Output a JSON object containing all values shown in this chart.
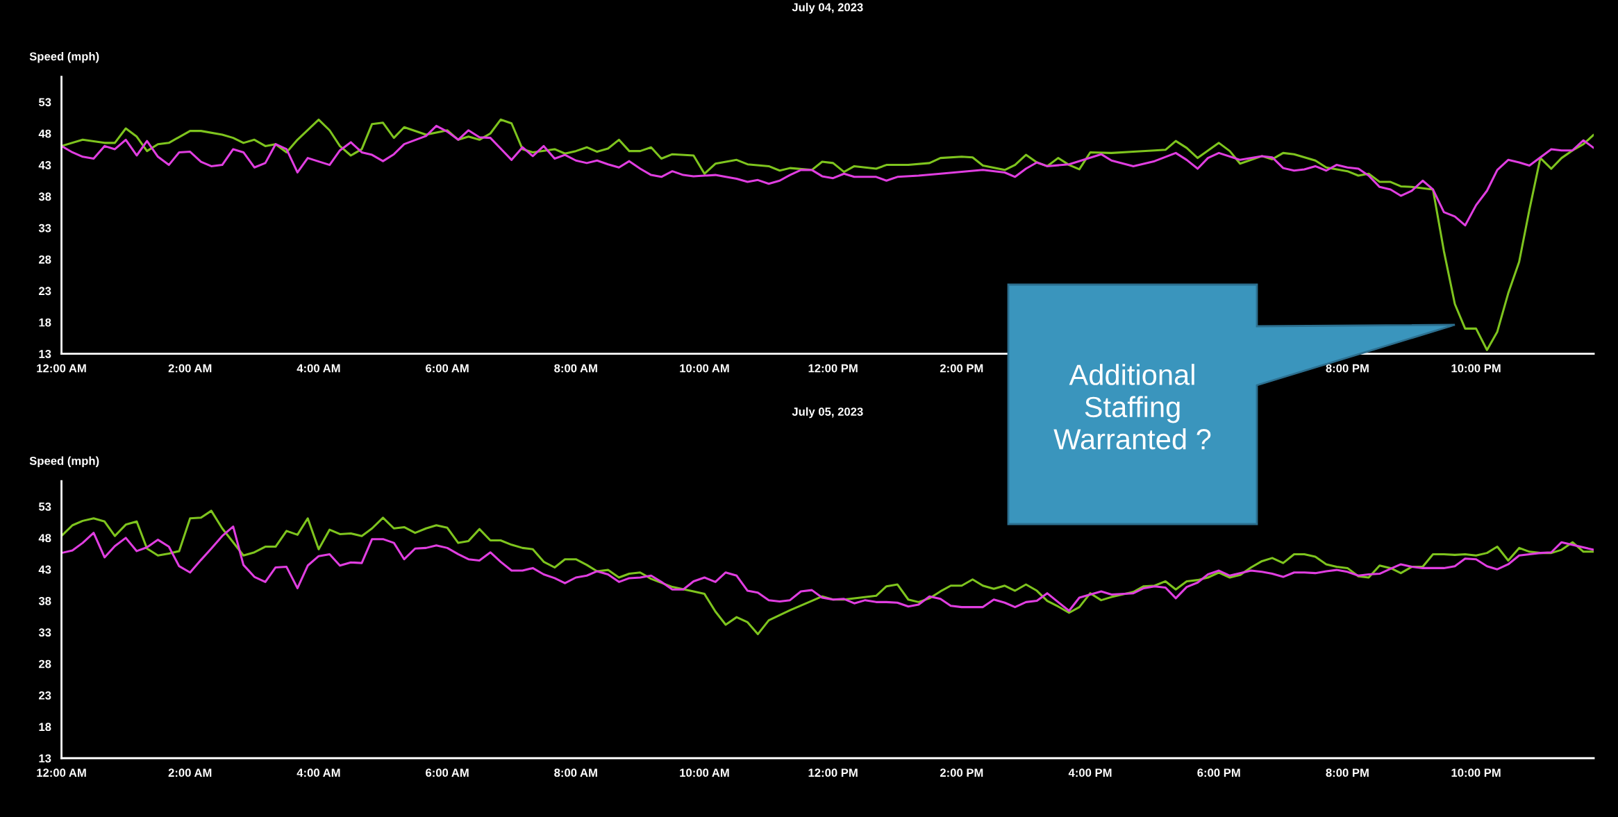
{
  "chart_data": [
    {
      "type": "line",
      "title": "July 04, 2023",
      "ylabel": "Speed (mph)",
      "xlim": [
        0,
        23.83
      ],
      "ylim": [
        13,
        57
      ],
      "xticks": [
        {
          "value": 0,
          "label": "12:00 AM"
        },
        {
          "value": 2,
          "label": "2:00 AM"
        },
        {
          "value": 4,
          "label": "4:00 AM"
        },
        {
          "value": 6,
          "label": "6:00 AM"
        },
        {
          "value": 8,
          "label": "8:00 AM"
        },
        {
          "value": 10,
          "label": "10:00 AM"
        },
        {
          "value": 12,
          "label": "12:00 PM"
        },
        {
          "value": 14,
          "label": "2:00 PM"
        },
        {
          "value": 20,
          "label": "8:00 PM"
        },
        {
          "value": 22,
          "label": "10:00 PM"
        }
      ],
      "yticks": [
        13,
        18,
        23,
        28,
        33,
        38,
        43,
        48,
        53
      ],
      "grid": false,
      "legend": false,
      "marker": "none",
      "line_style": "solid",
      "annotations": [
        "Additional\nStaffing\nWarranted ?"
      ],
      "series": [
        {
          "color": "#7ec41e",
          "x": [
            0,
            0.33,
            0.67,
            0.83,
            1,
            1.17,
            1.33,
            1.5,
            1.67,
            2,
            2.17,
            2.5,
            2.67,
            2.83,
            3,
            3.17,
            3.33,
            3.5,
            3.67,
            4,
            4.17,
            4.33,
            4.5,
            4.67,
            4.83,
            5,
            5.17,
            5.33,
            5.67,
            6,
            6.17,
            6.33,
            6.5,
            6.67,
            6.83,
            7,
            7.17,
            7.33,
            7.67,
            7.83,
            8,
            8.17,
            8.33,
            8.5,
            8.67,
            8.83,
            9,
            9.17,
            9.33,
            9.5,
            9.83,
            10,
            10.17,
            10.5,
            10.67,
            11,
            11.17,
            11.33,
            11.67,
            11.83,
            12,
            12.17,
            12.33,
            12.67,
            12.83,
            13.17,
            13.5,
            13.67,
            14,
            14.17,
            14.33,
            14.67,
            14.83,
            15,
            15.17,
            15.33,
            15.5,
            15.67,
            15.83,
            16,
            16.33,
            16.67,
            17,
            17.17,
            17.33,
            17.5,
            17.67,
            18,
            18.17,
            18.33,
            18.67,
            18.83,
            19,
            19.17,
            19.5,
            19.67,
            20,
            20.17,
            20.33,
            20.5,
            20.67,
            20.83,
            21,
            21.33,
            21.5,
            21.67,
            21.83,
            22,
            22.17,
            22.33,
            22.5,
            22.67,
            22.83,
            23,
            23.17,
            23.33,
            23.5,
            23.67,
            23.83
          ],
          "values": [
            46,
            47,
            46.5,
            46.5,
            48.8,
            47.5,
            45.2,
            46.3,
            46.5,
            48.4,
            48.4,
            47.8,
            47.3,
            46.5,
            47,
            46,
            46.3,
            45,
            47,
            50.2,
            48.5,
            46,
            44.5,
            45.5,
            49.5,
            49.7,
            47.3,
            49,
            47.8,
            48.5,
            47,
            47.5,
            47,
            48,
            50.2,
            49.6,
            45.5,
            45,
            45.5,
            44.8,
            45.2,
            45.8,
            45.1,
            45.6,
            47,
            45.2,
            45.2,
            45.8,
            44,
            44.7,
            44.5,
            41.6,
            43.2,
            43.8,
            43.1,
            42.8,
            42.1,
            42.5,
            42.2,
            43.5,
            43.3,
            41.9,
            42.8,
            42.4,
            43,
            43,
            43.3,
            44.1,
            44.3,
            44.2,
            42.9,
            42.2,
            43,
            44.6,
            43.4,
            42.8,
            44.1,
            43,
            42.3,
            45,
            44.9,
            45.1,
            45.3,
            45.4,
            46.8,
            45.7,
            44.1,
            46.5,
            45.2,
            43.2,
            44.4,
            43.9,
            44.9,
            44.7,
            43.7,
            42.6,
            42,
            41.3,
            41.6,
            40.3,
            40.3,
            39.6,
            39.5,
            39.1,
            29.3,
            20.9,
            17,
            17,
            13.6,
            16.5,
            22.6,
            27.6,
            35.9,
            44.1,
            42.4,
            44.1,
            45.3,
            46.3,
            47.8
          ]
        },
        {
          "color": "#e03ee0",
          "x": [
            0,
            0.17,
            0.33,
            0.5,
            0.67,
            0.83,
            1,
            1.17,
            1.33,
            1.5,
            1.67,
            1.83,
            2,
            2.17,
            2.33,
            2.5,
            2.67,
            2.83,
            3,
            3.17,
            3.33,
            3.5,
            3.67,
            3.83,
            4.17,
            4.33,
            4.5,
            4.67,
            4.83,
            5,
            5.17,
            5.33,
            5.67,
            5.83,
            6,
            6.17,
            6.33,
            6.5,
            6.67,
            6.83,
            7,
            7.17,
            7.33,
            7.5,
            7.67,
            7.83,
            8,
            8.17,
            8.33,
            8.5,
            8.67,
            8.83,
            9,
            9.17,
            9.33,
            9.5,
            9.67,
            9.83,
            10.17,
            10.5,
            10.67,
            10.83,
            11,
            11.17,
            11.33,
            11.5,
            11.67,
            11.83,
            12,
            12.17,
            12.33,
            12.67,
            12.83,
            13,
            13.33,
            13.67,
            14,
            14.33,
            14.67,
            14.83,
            15,
            15.17,
            15.33,
            15.67,
            16.17,
            16.33,
            16.67,
            17,
            17.33,
            17.5,
            17.67,
            17.83,
            18,
            18.33,
            18.67,
            18.83,
            19,
            19.17,
            19.33,
            19.5,
            19.67,
            19.83,
            20,
            20.17,
            20.33,
            20.5,
            20.67,
            20.83,
            21,
            21.17,
            21.33,
            21.5,
            21.67,
            21.83,
            22,
            22.17,
            22.33,
            22.5,
            22.67,
            22.83,
            23,
            23.17,
            23.33,
            23.5,
            23.67,
            23.83
          ],
          "values": [
            46,
            45,
            44.3,
            44,
            46,
            45.5,
            47,
            44.5,
            46.8,
            44.3,
            43,
            45,
            45.1,
            43.5,
            42.8,
            43,
            45.5,
            45,
            42.6,
            43.3,
            46.3,
            45.5,
            41.8,
            44.1,
            43,
            45.3,
            46.6,
            45,
            44.6,
            43.6,
            44.7,
            46.3,
            47.6,
            49.2,
            48.3,
            47,
            48.5,
            47.4,
            47.3,
            45.6,
            43.8,
            45.8,
            44.4,
            46,
            44,
            44.6,
            43.7,
            43.3,
            43.7,
            43.1,
            42.6,
            43.6,
            42.4,
            41.4,
            41.1,
            42,
            41.4,
            41.2,
            41.4,
            40.8,
            40.3,
            40.6,
            40,
            40.5,
            41.4,
            42.2,
            42.2,
            41.2,
            40.9,
            41.6,
            41.1,
            41.1,
            40.5,
            41.1,
            41.3,
            41.6,
            41.9,
            42.2,
            41.8,
            41.1,
            42.4,
            43.4,
            42.8,
            43.1,
            44.7,
            43.7,
            42.8,
            43.6,
            44.9,
            43.8,
            42.4,
            44.1,
            44.9,
            43.8,
            44.4,
            44.2,
            42.5,
            42.1,
            42.3,
            42.8,
            42.1,
            43,
            42.6,
            42.4,
            41.3,
            39.5,
            39.1,
            38.1,
            38.9,
            40.5,
            39.1,
            35.5,
            34.8,
            33.4,
            36.6,
            38.9,
            42.2,
            43.8,
            43.4,
            42.9,
            44.2,
            45.5,
            45.3,
            45.3,
            46.9,
            45.7
          ]
        }
      ]
    },
    {
      "type": "line",
      "title": "July 05, 2023",
      "ylabel": "Speed (mph)",
      "xlim": [
        0,
        23.83
      ],
      "ylim": [
        13,
        57
      ],
      "xticks": [
        {
          "value": 0,
          "label": "12:00 AM"
        },
        {
          "value": 2,
          "label": "2:00 AM"
        },
        {
          "value": 4,
          "label": "4:00 AM"
        },
        {
          "value": 6,
          "label": "6:00 AM"
        },
        {
          "value": 8,
          "label": "8:00 AM"
        },
        {
          "value": 10,
          "label": "10:00 AM"
        },
        {
          "value": 12,
          "label": "12:00 PM"
        },
        {
          "value": 14,
          "label": "2:00 PM"
        },
        {
          "value": 16,
          "label": "4:00 PM"
        },
        {
          "value": 18,
          "label": "6:00 PM"
        },
        {
          "value": 20,
          "label": "8:00 PM"
        },
        {
          "value": 22,
          "label": "10:00 PM"
        }
      ],
      "yticks": [
        13,
        18,
        23,
        28,
        33,
        38,
        43,
        48,
        53
      ],
      "grid": false,
      "legend": false,
      "marker": "none",
      "line_style": "solid",
      "series": [
        {
          "color": "#7ec41e",
          "x": [
            0,
            0.17,
            0.33,
            0.5,
            0.67,
            0.83,
            1,
            1.17,
            1.33,
            1.5,
            1.67,
            1.83,
            2,
            2.17,
            2.33,
            2.5,
            2.67,
            2.83,
            3,
            3.17,
            3.33,
            3.5,
            3.67,
            3.83,
            4,
            4.17,
            4.33,
            4.5,
            4.67,
            4.83,
            5,
            5.17,
            5.33,
            5.5,
            5.67,
            5.83,
            6,
            6.17,
            6.33,
            6.5,
            6.67,
            6.83,
            7,
            7.17,
            7.33,
            7.5,
            7.67,
            7.83,
            8,
            8.17,
            8.33,
            8.5,
            8.67,
            8.83,
            9,
            9.17,
            9.5,
            9.83,
            10,
            10.17,
            10.33,
            10.5,
            10.67,
            10.83,
            11,
            11.33,
            11.67,
            11.83,
            12,
            12.17,
            12.33,
            12.67,
            12.83,
            13,
            13.17,
            13.33,
            13.5,
            13.67,
            13.83,
            14,
            14.17,
            14.33,
            14.5,
            14.67,
            14.83,
            15,
            15.17,
            15.33,
            15.5,
            15.67,
            15.83,
            16,
            16.17,
            16.33,
            16.67,
            16.83,
            17,
            17.17,
            17.33,
            17.5,
            17.67,
            17.83,
            18,
            18.17,
            18.33,
            18.5,
            18.67,
            18.83,
            19,
            19.17,
            19.33,
            19.5,
            19.67,
            19.83,
            20,
            20.17,
            20.33,
            20.5,
            20.67,
            20.83,
            21,
            21.17,
            21.33,
            21.5,
            21.67,
            21.83,
            22,
            22.17,
            22.33,
            22.5,
            22.67,
            22.83,
            23,
            23.17,
            23.33,
            23.5,
            23.67,
            23.83
          ],
          "values": [
            48.3,
            50,
            50.7,
            51.1,
            50.6,
            48.3,
            50.1,
            50.6,
            46.3,
            45.2,
            45.5,
            45.9,
            51.1,
            51.2,
            52.3,
            49.5,
            47.3,
            45.2,
            45.7,
            46.6,
            46.6,
            49.1,
            48.5,
            51.1,
            46.2,
            49.3,
            48.6,
            48.7,
            48.3,
            49.5,
            51.2,
            49.5,
            49.7,
            48.8,
            49.5,
            50,
            49.6,
            47.2,
            47.5,
            49.4,
            47.6,
            47.6,
            46.9,
            46.4,
            46.2,
            44.2,
            43.3,
            44.6,
            44.6,
            43.7,
            42.7,
            42.9,
            41.7,
            42.3,
            42.5,
            41.5,
            40.2,
            39.5,
            39.1,
            36.3,
            34.2,
            35.4,
            34.6,
            32.7,
            34.9,
            36.5,
            38,
            38.7,
            38.2,
            38.2,
            38.4,
            38.8,
            40.3,
            40.6,
            38.2,
            37.8,
            38.4,
            39.5,
            40.4,
            40.4,
            41.4,
            40.4,
            39.9,
            40.4,
            39.6,
            40.6,
            39.6,
            38,
            37.1,
            36.1,
            37,
            39.2,
            38.1,
            38.6,
            39.4,
            40.3,
            40.4,
            41.1,
            39.8,
            41.1,
            41.3,
            41.7,
            42.5,
            41.7,
            42.1,
            43.3,
            44.3,
            44.8,
            44,
            45.4,
            45.4,
            45,
            43.8,
            43.4,
            43.2,
            41.9,
            41.7,
            43.6,
            43.2,
            42.4,
            43.4,
            43.4,
            45.4,
            45.4,
            45.3,
            45.4,
            45.2,
            45.6,
            46.6,
            44.4,
            46.4,
            45.8,
            45.6,
            45.6,
            46.1,
            47.3,
            45.8,
            45.8
          ]
        },
        {
          "color": "#e03ee0",
          "x": [
            0,
            0.17,
            0.33,
            0.5,
            0.67,
            0.83,
            1,
            1.17,
            1.33,
            1.5,
            1.67,
            1.83,
            2,
            2.17,
            2.33,
            2.5,
            2.67,
            2.83,
            3,
            3.17,
            3.33,
            3.5,
            3.67,
            3.83,
            4,
            4.17,
            4.33,
            4.5,
            4.67,
            4.83,
            5,
            5.17,
            5.33,
            5.5,
            5.67,
            5.83,
            6,
            6.17,
            6.33,
            6.5,
            6.67,
            6.83,
            7,
            7.17,
            7.33,
            7.5,
            7.67,
            7.83,
            8,
            8.17,
            8.33,
            8.5,
            8.67,
            8.83,
            9,
            9.17,
            9.33,
            9.5,
            9.67,
            9.83,
            10,
            10.17,
            10.33,
            10.5,
            10.67,
            10.83,
            11,
            11.17,
            11.33,
            11.5,
            11.67,
            11.83,
            12,
            12.17,
            12.33,
            12.5,
            12.67,
            12.83,
            13,
            13.17,
            13.33,
            13.5,
            13.67,
            13.83,
            14,
            14.17,
            14.33,
            14.5,
            14.67,
            14.83,
            15,
            15.17,
            15.33,
            15.5,
            15.67,
            15.83,
            16,
            16.17,
            16.33,
            16.67,
            16.83,
            17,
            17.17,
            17.33,
            17.5,
            17.67,
            17.83,
            18,
            18.17,
            18.33,
            18.5,
            18.67,
            18.83,
            19,
            19.17,
            19.33,
            19.5,
            19.67,
            19.83,
            20,
            20.17,
            20.33,
            20.5,
            20.67,
            20.83,
            21,
            21.17,
            21.33,
            21.5,
            21.67,
            21.83,
            22,
            22.17,
            22.33,
            22.5,
            22.67,
            22.83,
            23,
            23.17,
            23.33,
            23.83
          ],
          "values": [
            45.6,
            46,
            47.2,
            48.8,
            44.9,
            46.7,
            48,
            45.9,
            46.5,
            47.7,
            46.6,
            43.5,
            42.5,
            44.5,
            46.3,
            48.3,
            49.8,
            43.7,
            41.8,
            41,
            43.3,
            43.4,
            40,
            43.6,
            45.1,
            45.4,
            43.6,
            44.1,
            44,
            47.8,
            47.8,
            47.2,
            44.6,
            46.3,
            46.4,
            46.8,
            46.4,
            45.4,
            44.6,
            44.4,
            45.7,
            44.2,
            42.8,
            42.8,
            43.2,
            42.2,
            41.6,
            40.8,
            41.7,
            42,
            42.7,
            42.2,
            41,
            41.6,
            41.7,
            42,
            41,
            39.8,
            39.8,
            41.1,
            41.7,
            41,
            42.5,
            42,
            39.6,
            39.3,
            38.1,
            37.9,
            38.1,
            39.5,
            39.7,
            38.5,
            38.2,
            38.3,
            37.6,
            38.1,
            37.8,
            37.8,
            37.7,
            37.1,
            37.4,
            38.7,
            38.3,
            37.2,
            37,
            37,
            37,
            38.2,
            37.7,
            37,
            37.8,
            38,
            39.2,
            37.8,
            36.4,
            38.5,
            39,
            39.5,
            39,
            39.2,
            40,
            40.3,
            40.1,
            38.4,
            40.2,
            40.9,
            42.2,
            42.8,
            42,
            42.4,
            42.8,
            42.6,
            42.3,
            41.8,
            42.5,
            42.5,
            42.4,
            42.7,
            42.9,
            42.6,
            42,
            42.2,
            42.3,
            43.1,
            43.8,
            43.4,
            43.2,
            43.2,
            43.2,
            43.5,
            44.7,
            44.6,
            43.5,
            43,
            43.8,
            45.2,
            45.4,
            45.6,
            45.7,
            47.3,
            46.1
          ]
        }
      ]
    }
  ]
}
